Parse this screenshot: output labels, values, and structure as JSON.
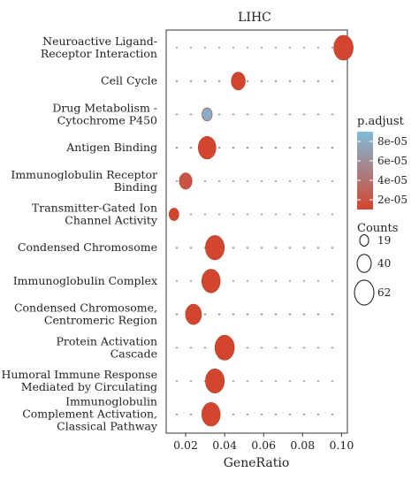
{
  "chart_data": {
    "type": "scatter",
    "title": "LIHC",
    "xlabel": "GeneRatio",
    "ylabel": "",
    "xlim": [
      0.01,
      0.103
    ],
    "xticks": [
      "0.02",
      "0.04",
      "0.06",
      "0.08",
      "0.10"
    ],
    "xtick_values": [
      0.02,
      0.04,
      0.06,
      0.08,
      0.1
    ],
    "grid": true,
    "categories": [
      [
        "Neuroactive Ligand-",
        "Receptor Interaction"
      ],
      [
        "Cell Cycle"
      ],
      [
        "Drug Metabolism -",
        "Cytochrome P450"
      ],
      [
        "Antigen Binding"
      ],
      [
        "Immunoglobulin Receptor",
        "Binding"
      ],
      [
        "Transmitter-Gated Ion",
        "Channel Activity"
      ],
      [
        "Condensed Chromosome"
      ],
      [
        "Immunoglobulin Complex"
      ],
      [
        "Condensed Chromosome,",
        "Centromeric Region"
      ],
      [
        "Protein Activation",
        "Cascade"
      ],
      [
        "Humoral Immune Response",
        "Mediated by Circulating"
      ],
      [
        "Immunoglobulin",
        "Complement Activation,",
        "Classical Pathway"
      ]
    ],
    "points": [
      {
        "x": 0.101,
        "count": 62,
        "p_adjust": 1e-05
      },
      {
        "x": 0.047,
        "count": 40,
        "p_adjust": 1e-05
      },
      {
        "x": 0.031,
        "count": 25,
        "p_adjust": 8e-05
      },
      {
        "x": 0.031,
        "count": 55,
        "p_adjust": 1e-05
      },
      {
        "x": 0.02,
        "count": 35,
        "p_adjust": 2e-05
      },
      {
        "x": 0.014,
        "count": 23,
        "p_adjust": 1e-05
      },
      {
        "x": 0.035,
        "count": 60,
        "p_adjust": 1e-05
      },
      {
        "x": 0.033,
        "count": 58,
        "p_adjust": 1e-05
      },
      {
        "x": 0.024,
        "count": 48,
        "p_adjust": 1e-05
      },
      {
        "x": 0.04,
        "count": 62,
        "p_adjust": 1e-05
      },
      {
        "x": 0.035,
        "count": 60,
        "p_adjust": 1e-05
      },
      {
        "x": 0.033,
        "count": 58,
        "p_adjust": 1e-05
      }
    ],
    "color_legend": {
      "title": "p.adjust",
      "labels": [
        "8e-05",
        "6e-05",
        "4e-05",
        "2e-05"
      ],
      "values": [
        8e-05,
        6e-05,
        4e-05,
        2e-05
      ],
      "range": [
        1e-05,
        9e-05
      ],
      "low_color": "#d2452e",
      "high_color": "#7fbcd9"
    },
    "size_legend": {
      "title": "Counts",
      "values": [
        19,
        40,
        62
      ],
      "labels": [
        "19",
        "40",
        "62"
      ]
    },
    "legend_position": "right",
    "panel_background": "#ffffff",
    "point_outline": "#b0412b"
  }
}
